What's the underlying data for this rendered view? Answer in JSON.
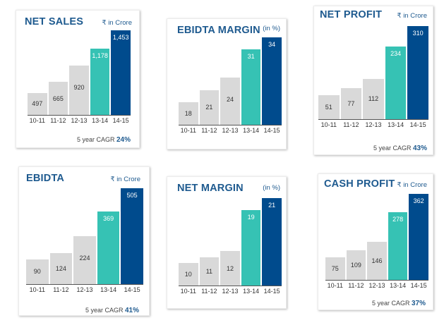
{
  "colors": {
    "title": "#1e5a8f",
    "bar_old": "#d9d9d9",
    "bar_prev": "#36c2b4",
    "bar_current": "#004b8d",
    "value_dark": "#333333",
    "value_light": "#ffffff"
  },
  "chart_data": [
    {
      "type": "bar",
      "title": "NET SALES",
      "unit": "₹ in Crore",
      "categories": [
        "10-11",
        "11-12",
        "12-13",
        "13-14",
        "14-15"
      ],
      "values": [
        497,
        665,
        920,
        1178,
        1453
      ],
      "value_labels": [
        "497",
        "665",
        "920",
        "1,178",
        "1,453"
      ],
      "cagr_label": "5 year CAGR",
      "cagr_value": "24%"
    },
    {
      "type": "bar",
      "title": "EBIDTA MARGIN",
      "unit": "(in %)",
      "categories": [
        "10-11",
        "11-12",
        "12-13",
        "13-14",
        "14-15"
      ],
      "values": [
        18,
        21,
        24,
        31,
        34
      ],
      "value_labels": [
        "18",
        "21",
        "24",
        "31",
        "34"
      ]
    },
    {
      "type": "bar",
      "title": "NET PROFIT",
      "unit": "₹ in Crore",
      "categories": [
        "10-11",
        "11-12",
        "12-13",
        "13-14",
        "14-15"
      ],
      "values": [
        51,
        77,
        112,
        234,
        310
      ],
      "value_labels": [
        "51",
        "77",
        "112",
        "234",
        "310"
      ],
      "cagr_label": "5 year CAGR",
      "cagr_value": "43%"
    },
    {
      "type": "bar",
      "title": "EBIDTA",
      "unit": "₹ in Crore",
      "categories": [
        "10-11",
        "11-12",
        "12-13",
        "13-14",
        "14-15"
      ],
      "values": [
        90,
        124,
        224,
        369,
        505
      ],
      "value_labels": [
        "90",
        "124",
        "224",
        "369",
        "505"
      ],
      "cagr_label": "5 year CAGR",
      "cagr_value": "41%"
    },
    {
      "type": "bar",
      "title": "NET MARGIN",
      "unit": "(in %)",
      "categories": [
        "10-11",
        "11-12",
        "12-13",
        "13-14",
        "14-15"
      ],
      "values": [
        10,
        11,
        12,
        19,
        21
      ],
      "value_labels": [
        "10",
        "11",
        "12",
        "19",
        "21"
      ]
    },
    {
      "type": "bar",
      "title": "CASH PROFIT",
      "unit": "₹ in Crore",
      "categories": [
        "10-11",
        "11-12",
        "12-13",
        "13-14",
        "14-15"
      ],
      "values": [
        75,
        109,
        146,
        278,
        362
      ],
      "value_labels": [
        "75",
        "109",
        "146",
        "278",
        "362"
      ],
      "cagr_label": "5 year CAGR",
      "cagr_value": "37%"
    }
  ]
}
